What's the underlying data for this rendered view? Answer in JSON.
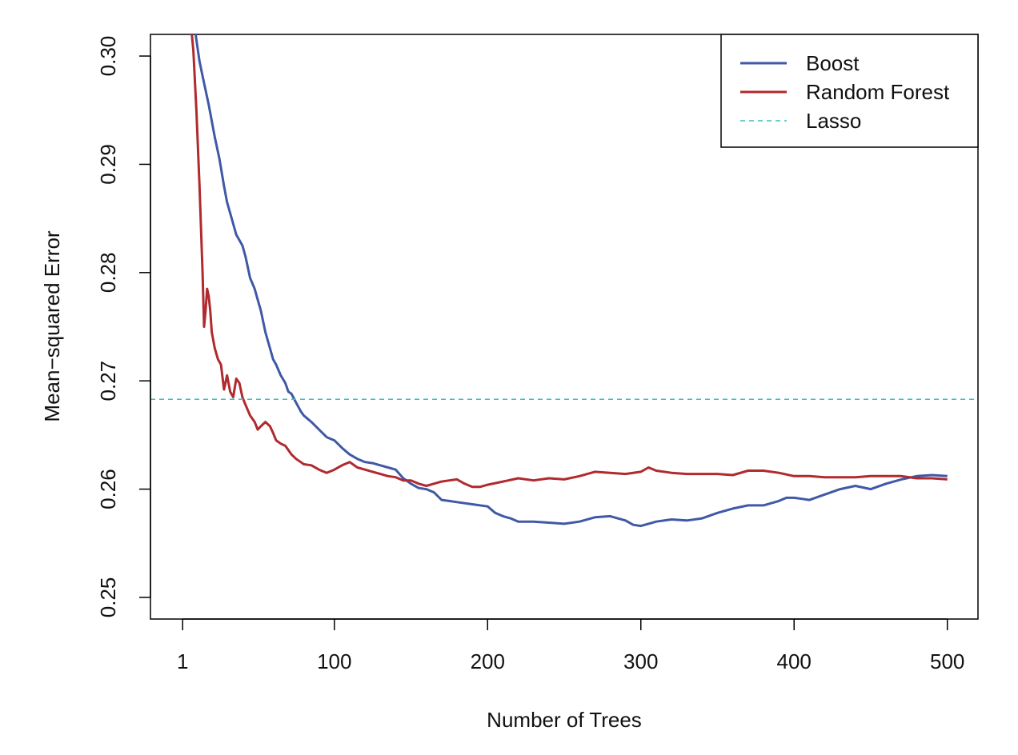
{
  "chart_data": {
    "type": "line",
    "xlabel": "Number of Trees",
    "ylabel": "Mean−squared Error",
    "xlim": [
      -20,
      520
    ],
    "ylim": [
      0.248,
      0.302
    ],
    "x_ticks": [
      1,
      100,
      200,
      300,
      400,
      500
    ],
    "x_tick_labels": [
      "1",
      "100",
      "200",
      "300",
      "400",
      "500"
    ],
    "y_ticks": [
      0.25,
      0.26,
      0.27,
      0.28,
      0.29,
      0.3
    ],
    "y_tick_labels": [
      "0.25",
      "0.26",
      "0.27",
      "0.28",
      "0.29",
      "0.30"
    ],
    "grid": false,
    "legend_position": "top-right",
    "series": [
      {
        "name": "Boost",
        "color": "#4059a6",
        "style": "solid",
        "x": [
          8,
          10,
          12,
          15,
          18,
          20,
          22,
          25,
          28,
          30,
          33,
          36,
          40,
          42,
          45,
          48,
          50,
          52,
          55,
          58,
          60,
          62,
          65,
          68,
          70,
          72,
          75,
          78,
          80,
          85,
          90,
          95,
          100,
          105,
          110,
          115,
          120,
          125,
          130,
          135,
          140,
          145,
          150,
          155,
          160,
          165,
          170,
          175,
          180,
          190,
          200,
          205,
          210,
          215,
          220,
          230,
          240,
          250,
          260,
          270,
          280,
          290,
          295,
          300,
          305,
          310,
          320,
          330,
          340,
          350,
          360,
          370,
          380,
          390,
          395,
          400,
          405,
          410,
          420,
          430,
          440,
          450,
          460,
          470,
          480,
          490,
          500
        ],
        "y": [
          0.3035,
          0.3015,
          0.2995,
          0.2975,
          0.2955,
          0.294,
          0.2925,
          0.2905,
          0.288,
          0.2865,
          0.285,
          0.2835,
          0.2825,
          0.2815,
          0.2795,
          0.2785,
          0.2775,
          0.2765,
          0.2745,
          0.273,
          0.272,
          0.2715,
          0.2705,
          0.2698,
          0.269,
          0.2688,
          0.268,
          0.2672,
          0.2668,
          0.2662,
          0.2655,
          0.2648,
          0.2645,
          0.2638,
          0.2632,
          0.2628,
          0.2625,
          0.2624,
          0.2622,
          0.262,
          0.2618,
          0.261,
          0.2605,
          0.2601,
          0.26,
          0.2597,
          0.259,
          0.2589,
          0.2588,
          0.2586,
          0.2584,
          0.2578,
          0.2575,
          0.2573,
          0.257,
          0.257,
          0.2569,
          0.2568,
          0.257,
          0.2574,
          0.2575,
          0.2571,
          0.2567,
          0.2566,
          0.2568,
          0.257,
          0.2572,
          0.2571,
          0.2573,
          0.2578,
          0.2582,
          0.2585,
          0.2585,
          0.2589,
          0.2592,
          0.2592,
          0.2591,
          0.259,
          0.2595,
          0.26,
          0.2603,
          0.26,
          0.2605,
          0.2609,
          0.2612,
          0.2613,
          0.2612
        ]
      },
      {
        "name": "Random Forest",
        "color": "#b02a2e",
        "style": "solid",
        "x": [
          6,
          8,
          10,
          12,
          14,
          15,
          16,
          17,
          18,
          19,
          20,
          22,
          24,
          26,
          28,
          30,
          32,
          34,
          36,
          38,
          40,
          42,
          45,
          48,
          50,
          52,
          55,
          58,
          60,
          62,
          65,
          68,
          70,
          72,
          75,
          78,
          80,
          85,
          90,
          95,
          100,
          105,
          110,
          115,
          120,
          125,
          130,
          135,
          140,
          145,
          150,
          155,
          160,
          165,
          170,
          175,
          180,
          185,
          190,
          195,
          200,
          210,
          220,
          230,
          240,
          250,
          260,
          270,
          280,
          290,
          300,
          305,
          310,
          320,
          330,
          340,
          350,
          360,
          370,
          380,
          390,
          400,
          410,
          420,
          430,
          440,
          450,
          460,
          470,
          480,
          490,
          500
        ],
        "y": [
          0.3035,
          0.3005,
          0.295,
          0.288,
          0.28,
          0.275,
          0.2765,
          0.2785,
          0.2778,
          0.2765,
          0.2745,
          0.273,
          0.272,
          0.2715,
          0.2692,
          0.2705,
          0.269,
          0.2685,
          0.2702,
          0.2698,
          0.2685,
          0.2678,
          0.2668,
          0.2662,
          0.2655,
          0.2658,
          0.2662,
          0.2658,
          0.2652,
          0.2645,
          0.2642,
          0.264,
          0.2636,
          0.2632,
          0.2628,
          0.2625,
          0.2623,
          0.2622,
          0.2618,
          0.2615,
          0.2618,
          0.2622,
          0.2625,
          0.262,
          0.2618,
          0.2616,
          0.2614,
          0.2612,
          0.2611,
          0.2608,
          0.2608,
          0.2605,
          0.2603,
          0.2605,
          0.2607,
          0.2608,
          0.2609,
          0.2605,
          0.2602,
          0.2602,
          0.2604,
          0.2607,
          0.261,
          0.2608,
          0.261,
          0.2609,
          0.2612,
          0.2616,
          0.2615,
          0.2614,
          0.2616,
          0.262,
          0.2617,
          0.2615,
          0.2614,
          0.2614,
          0.2614,
          0.2613,
          0.2617,
          0.2617,
          0.2615,
          0.2612,
          0.2612,
          0.2611,
          0.2611,
          0.2611,
          0.2612,
          0.2612,
          0.2612,
          0.261,
          0.261,
          0.2609
        ]
      },
      {
        "name": "Lasso",
        "color": "#3fbfbf",
        "style": "dashed",
        "x": [
          -20,
          520
        ],
        "y": [
          0.2683,
          0.2683
        ]
      }
    ]
  }
}
